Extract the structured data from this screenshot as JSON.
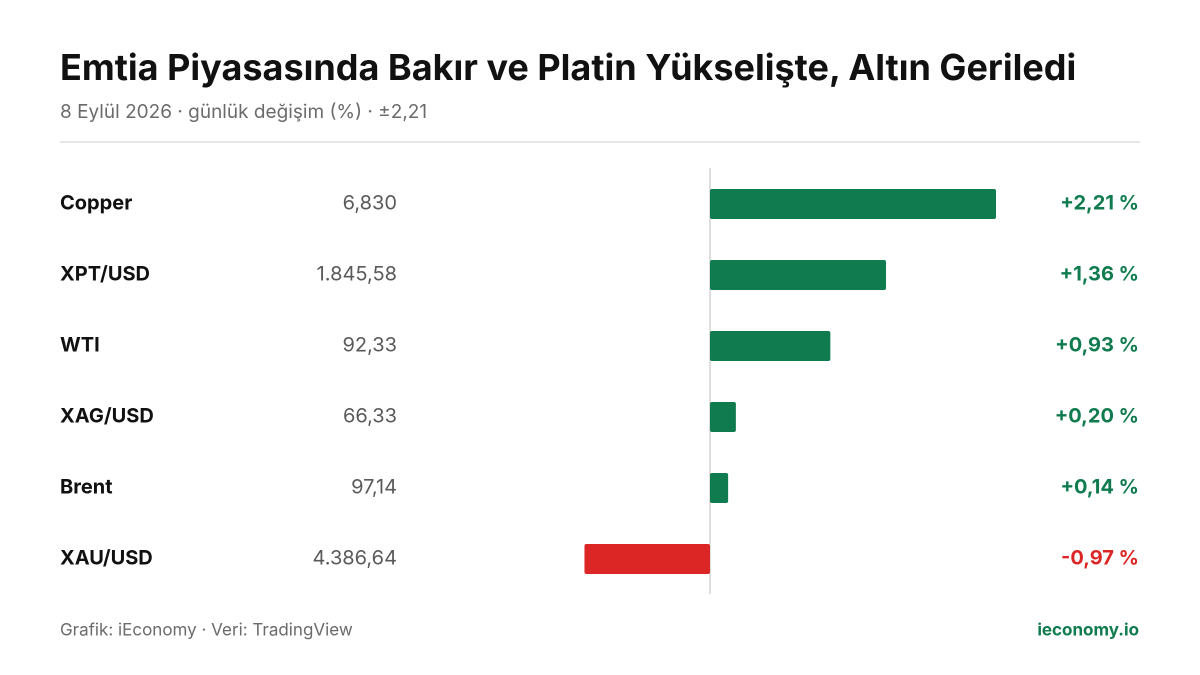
{
  "chart_data": {
    "type": "bar",
    "orientation": "horizontal",
    "title": "Emtia Piyasasında Bakır ve Platin Yükselişte, Altın Geriledi",
    "subtitle": "8 Eylül 2026 · günlük değişim (%) · ±2,21",
    "categories": [
      "Copper",
      "XPT/USD",
      "WTI",
      "XAG/USD",
      "Brent",
      "XAU/USD"
    ],
    "prices": [
      "6,830",
      "1.845,58",
      "92,33",
      "66,33",
      "97,14",
      "4.386,64"
    ],
    "values": [
      2.21,
      1.36,
      0.93,
      0.2,
      0.14,
      -0.97
    ],
    "value_labels": [
      "+2,21 %",
      "+1,36 %",
      "+0,93 %",
      "+0,20 %",
      "+0,14 %",
      "-0,97 %"
    ],
    "xlim": [
      -2.21,
      2.21
    ],
    "colors": {
      "positive": "#0f7b4f",
      "negative": "#dc2626"
    },
    "source": "Grafik: iEconomy · Veri: TradingView",
    "brand": "ieconomy.io"
  }
}
